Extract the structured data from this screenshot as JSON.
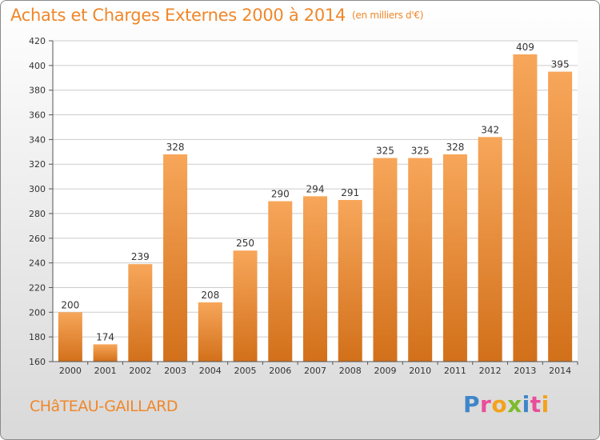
{
  "header": {
    "title": "Achats et Charges Externes 2000 à 2014",
    "unit": "(en milliers d'€)"
  },
  "footer": {
    "commune": "CHâTEAU-GAILLARD",
    "logo_letters": [
      {
        "ch": "P",
        "color": "#3f86c8"
      },
      {
        "ch": "r",
        "color": "#e94e9a"
      },
      {
        "ch": "o",
        "color": "#f3a21b"
      },
      {
        "ch": "x",
        "color": "#7dbb2a"
      },
      {
        "ch": "i",
        "color": "#3f86c8"
      },
      {
        "ch": "t",
        "color": "#e94e9a"
      },
      {
        "ch": "i",
        "color": "#f3a21b"
      }
    ]
  },
  "chart_data": {
    "type": "bar",
    "title": "Achats et Charges Externes 2000 à 2014",
    "subtitle": "(en milliers d'€)",
    "xlabel": "",
    "ylabel": "",
    "categories": [
      "2000",
      "2001",
      "2002",
      "2003",
      "2004",
      "2005",
      "2006",
      "2007",
      "2008",
      "2009",
      "2010",
      "2011",
      "2012",
      "2013",
      "2014"
    ],
    "values": [
      200,
      174,
      239,
      328,
      208,
      250,
      290,
      294,
      291,
      325,
      325,
      328,
      342,
      409,
      395
    ],
    "ylim": [
      160,
      420
    ],
    "yticks": [
      160,
      180,
      200,
      220,
      240,
      260,
      280,
      300,
      320,
      340,
      360,
      380,
      400,
      420
    ],
    "grid": true,
    "data_labels": true,
    "bar_color_top": "#f7a65a",
    "bar_color_bottom": "#d2701a",
    "grid_color": "#cccccc",
    "axis_color": "#555555"
  }
}
